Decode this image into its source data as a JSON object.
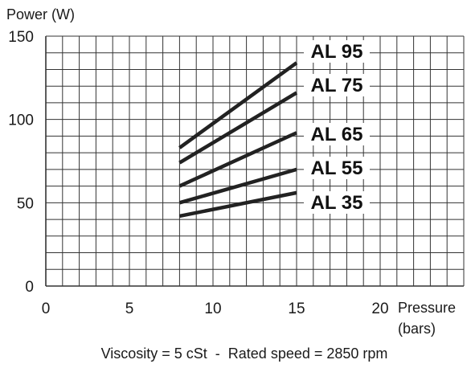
{
  "chart_data": {
    "type": "line",
    "title": "",
    "ylabel": "Power (W)",
    "xlabel": [
      "Pressure",
      "(bars)"
    ],
    "caption": "Viscosity = 5 cSt  -  Rated speed = 2850 rpm",
    "xlim": [
      0,
      25
    ],
    "ylim": [
      0,
      150
    ],
    "x_ticks": [
      0,
      5,
      10,
      15,
      20
    ],
    "y_ticks": [
      0,
      50,
      100,
      150
    ],
    "grid": true,
    "legend": "inline labels at line ends",
    "colors": {
      "line": "#222222",
      "grid": "#333333",
      "text": "#1a1a1a"
    },
    "series": [
      {
        "name": "AL 95",
        "x": [
          8,
          15
        ],
        "y": [
          83,
          134
        ]
      },
      {
        "name": "AL 75",
        "x": [
          8,
          15
        ],
        "y": [
          74,
          116
        ]
      },
      {
        "name": "AL 65",
        "x": [
          8,
          15
        ],
        "y": [
          60,
          92
        ]
      },
      {
        "name": "AL 55",
        "x": [
          8,
          15
        ],
        "y": [
          50,
          70
        ]
      },
      {
        "name": "AL 35",
        "x": [
          8,
          15
        ],
        "y": [
          42,
          56
        ]
      }
    ]
  }
}
